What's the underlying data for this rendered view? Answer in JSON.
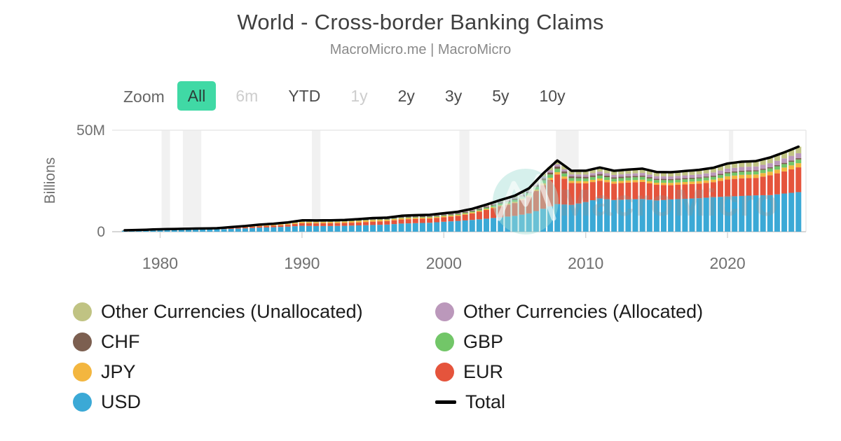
{
  "header": {
    "title": "World - Cross-border Banking Claims",
    "subtitle": "MacroMicro.me | MacroMicro"
  },
  "zoom_bar": {
    "label": "Zoom",
    "buttons": [
      {
        "label": "All",
        "state": "selected"
      },
      {
        "label": "6m",
        "state": "disabled"
      },
      {
        "label": "YTD",
        "state": "enabled"
      },
      {
        "label": "1y",
        "state": "disabled"
      },
      {
        "label": "2y",
        "state": "enabled"
      },
      {
        "label": "3y",
        "state": "enabled"
      },
      {
        "label": "5y",
        "state": "enabled"
      },
      {
        "label": "10y",
        "state": "enabled"
      }
    ]
  },
  "colors": {
    "selected_zoom_bg": "#40D9A5",
    "usd": "#3BA9D6",
    "eur": "#E5543C",
    "jpy": "#F3B63F",
    "gbp": "#72C668",
    "chf": "#7C5F50",
    "other_allocated": "#BB98BB",
    "other_unallocated": "#C0C383",
    "total": "#000000",
    "recession_band": "#F1F1F1",
    "grid_line": "#E8E8E8",
    "axis_line": "#D6D6D6",
    "tick_label": "#707070"
  },
  "watermark": {
    "text": "MacroMicro"
  },
  "chart_data": {
    "type": "bar",
    "stacked": true,
    "title": "World - Cross-border Banking Claims",
    "ylabel": "Billions",
    "ylim": [
      0,
      50
    ],
    "yticks": [
      {
        "v": 0,
        "label": "0"
      },
      {
        "v": 50,
        "label": "50M"
      }
    ],
    "xticks": [
      {
        "v": 1980,
        "label": "1980"
      },
      {
        "v": 1990,
        "label": "1990"
      },
      {
        "v": 2000,
        "label": "2000"
      },
      {
        "v": 2010,
        "label": "2010"
      },
      {
        "v": 2020,
        "label": "2020"
      }
    ],
    "x_years": [
      1977,
      1978,
      1979,
      1980,
      1981,
      1982,
      1983,
      1984,
      1985,
      1986,
      1987,
      1988,
      1989,
      1990,
      1991,
      1992,
      1993,
      1994,
      1995,
      1996,
      1997,
      1998,
      1999,
      2000,
      2001,
      2002,
      2003,
      2004,
      2005,
      2006,
      2007,
      2008,
      2009,
      2010,
      2011,
      2012,
      2013,
      2014,
      2015,
      2016,
      2017,
      2018,
      2019,
      2020,
      2021,
      2022,
      2023,
      2024,
      2025
    ],
    "bar_interval_years": 0.5,
    "x_range_drawn": [
      1977.5,
      2025
    ],
    "recession_bands": [
      [
        1980.1,
        1980.7
      ],
      [
        1981.6,
        1982.9
      ],
      [
        1990.7,
        1991.3
      ],
      [
        2001.1,
        2001.8
      ],
      [
        2007.9,
        2009.5
      ],
      [
        2020.1,
        2020.4
      ]
    ],
    "series": [
      {
        "name": "USD",
        "color": "#3BA9D6",
        "values": [
          0.45,
          0.55,
          0.7,
          0.85,
          0.95,
          1.05,
          1.1,
          1.2,
          1.4,
          1.65,
          2.0,
          2.2,
          2.5,
          2.9,
          2.8,
          2.8,
          2.9,
          3.1,
          3.3,
          3.5,
          4.0,
          4.2,
          4.4,
          4.9,
          5.3,
          5.8,
          6.4,
          7.1,
          7.8,
          9.0,
          11.3,
          13.6,
          13.2,
          14.6,
          16.4,
          15.6,
          15.9,
          16.1,
          15.4,
          15.9,
          16.2,
          16.5,
          17.0,
          17.3,
          17.6,
          17.9,
          18.0,
          18.8,
          19.5
        ]
      },
      {
        "name": "EUR",
        "color": "#E5543C",
        "values": [
          0.07,
          0.09,
          0.11,
          0.14,
          0.16,
          0.18,
          0.19,
          0.2,
          0.38,
          0.5,
          0.65,
          0.75,
          0.9,
          1.25,
          1.3,
          1.35,
          1.4,
          1.5,
          1.65,
          1.75,
          2.0,
          2.1,
          2.1,
          2.2,
          2.5,
          3.2,
          4.3,
          5.3,
          6.3,
          8.1,
          11.6,
          14.6,
          10.8,
          9.2,
          8.7,
          8.1,
          8.3,
          8.4,
          7.7,
          7.0,
          7.1,
          7.2,
          7.4,
          8.4,
          8.7,
          8.6,
          9.8,
          10.9,
          12.2
        ]
      },
      {
        "name": "JPY",
        "color": "#F3B63F",
        "values": [
          0.02,
          0.03,
          0.04,
          0.05,
          0.06,
          0.06,
          0.07,
          0.07,
          0.21,
          0.27,
          0.34,
          0.42,
          0.53,
          0.64,
          0.64,
          0.65,
          0.67,
          0.72,
          0.79,
          0.63,
          0.63,
          0.59,
          0.52,
          0.56,
          0.5,
          0.52,
          0.54,
          0.64,
          0.65,
          0.68,
          0.92,
          1.12,
          1.05,
          1.07,
          1.1,
          1.05,
          1.07,
          1.09,
          1.03,
          1.16,
          1.18,
          1.2,
          1.24,
          1.6,
          1.7,
          1.7,
          1.78,
          1.9,
          2.05
        ]
      },
      {
        "name": "GBP",
        "color": "#72C668",
        "values": [
          0.02,
          0.02,
          0.03,
          0.04,
          0.04,
          0.04,
          0.05,
          0.05,
          0.06,
          0.08,
          0.1,
          0.11,
          0.13,
          0.16,
          0.16,
          0.16,
          0.17,
          0.18,
          0.2,
          0.21,
          0.28,
          0.29,
          0.3,
          0.37,
          0.4,
          0.46,
          0.61,
          0.8,
          0.93,
          1.13,
          1.52,
          1.7,
          1.35,
          1.37,
          1.42,
          1.35,
          1.37,
          1.4,
          1.33,
          1.31,
          1.33,
          1.35,
          1.4,
          1.47,
          1.5,
          1.52,
          1.58,
          1.7,
          1.83
        ]
      },
      {
        "name": "CHF",
        "color": "#7C5F50",
        "values": [
          0.03,
          0.04,
          0.05,
          0.06,
          0.07,
          0.07,
          0.08,
          0.08,
          0.1,
          0.13,
          0.17,
          0.19,
          0.22,
          0.27,
          0.26,
          0.26,
          0.27,
          0.29,
          0.32,
          0.33,
          0.36,
          0.37,
          0.37,
          0.39,
          0.4,
          0.44,
          0.5,
          0.58,
          0.63,
          0.7,
          0.94,
          1.05,
          0.85,
          0.8,
          0.8,
          0.72,
          0.7,
          0.68,
          0.62,
          0.58,
          0.57,
          0.56,
          0.56,
          0.59,
          0.58,
          0.57,
          0.58,
          0.62,
          0.63
        ]
      },
      {
        "name": "Other Currencies (Allocated)",
        "color": "#BB98BB",
        "values": [
          0.01,
          0.01,
          0.01,
          0.02,
          0.02,
          0.02,
          0.02,
          0.03,
          0.04,
          0.05,
          0.07,
          0.08,
          0.09,
          0.11,
          0.11,
          0.11,
          0.12,
          0.13,
          0.14,
          0.15,
          0.17,
          0.18,
          0.18,
          0.2,
          0.22,
          0.26,
          0.32,
          0.4,
          0.48,
          0.61,
          0.88,
          1.12,
          0.96,
          1.07,
          1.16,
          1.14,
          1.19,
          1.27,
          1.27,
          1.28,
          1.36,
          1.44,
          1.58,
          1.72,
          1.8,
          1.85,
          2.0,
          2.2,
          2.42
        ]
      },
      {
        "name": "Other Currencies (Unallocated)",
        "color": "#C0C383",
        "values": [
          0.03,
          0.03,
          0.04,
          0.05,
          0.06,
          0.07,
          0.07,
          0.08,
          0.1,
          0.13,
          0.17,
          0.19,
          0.22,
          0.27,
          0.27,
          0.27,
          0.28,
          0.3,
          0.33,
          0.35,
          0.4,
          0.42,
          0.43,
          0.47,
          0.5,
          0.58,
          0.68,
          0.8,
          0.93,
          1.13,
          1.52,
          1.88,
          1.8,
          1.92,
          2.05,
          2.04,
          2.08,
          2.13,
          2.05,
          2.08,
          2.15,
          2.22,
          2.32,
          2.52,
          2.6,
          2.65,
          2.8,
          3.0,
          3.25
        ]
      }
    ],
    "total_series": {
      "name": "Total",
      "type": "line",
      "color": "#000000",
      "values": [
        0.63,
        0.77,
        0.98,
        1.21,
        1.36,
        1.49,
        1.58,
        1.71,
        2.29,
        2.81,
        3.5,
        3.94,
        4.59,
        5.6,
        5.54,
        5.6,
        5.81,
        6.22,
        6.73,
        6.92,
        7.84,
        8.15,
        8.3,
        9.09,
        9.82,
        11.26,
        13.35,
        15.62,
        17.72,
        21.35,
        28.68,
        35.07,
        30.01,
        30.03,
        31.63,
        30.0,
        30.61,
        31.07,
        29.4,
        29.31,
        29.89,
        30.47,
        31.5,
        33.6,
        34.48,
        34.79,
        36.54,
        39.12,
        41.88
      ]
    },
    "legend_position": "bottom"
  },
  "legend": {
    "columns": [
      [
        {
          "label": "Other Currencies (Unallocated)",
          "swatch": "circle",
          "color": "#C0C383"
        },
        {
          "label": "CHF",
          "swatch": "circle",
          "color": "#7C5F50"
        },
        {
          "label": "JPY",
          "swatch": "circle",
          "color": "#F3B63F"
        },
        {
          "label": "USD",
          "swatch": "circle",
          "color": "#3BA9D6"
        }
      ],
      [
        {
          "label": "Other Currencies (Allocated)",
          "swatch": "circle",
          "color": "#BB98BB"
        },
        {
          "label": "GBP",
          "swatch": "circle",
          "color": "#72C668"
        },
        {
          "label": "EUR",
          "swatch": "circle",
          "color": "#E5543C"
        },
        {
          "label": "Total",
          "swatch": "line",
          "color": "#000000"
        }
      ]
    ]
  }
}
